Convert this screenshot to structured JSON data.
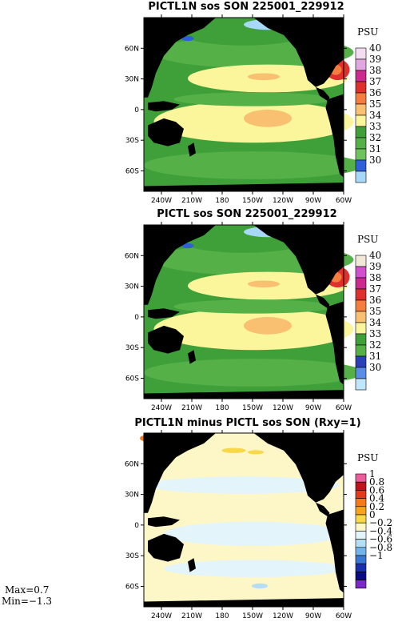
{
  "panels": [
    {
      "title": "PICTL1N sos SON 225001_229912",
      "unit": "PSU",
      "colorbar": [
        {
          "label": "40",
          "color": "#f2ddf2"
        },
        {
          "label": "39",
          "color": "#e0a7e0"
        },
        {
          "label": "38",
          "color": "#cc2a8f"
        },
        {
          "label": "37",
          "color": "#e0302d"
        },
        {
          "label": "36",
          "color": "#f57d3d"
        },
        {
          "label": "35",
          "color": "#f8c070"
        },
        {
          "label": "34",
          "color": "#fbf59b"
        },
        {
          "label": "33",
          "color": "#3fa03a"
        },
        {
          "label": "32",
          "color": "#55b048"
        },
        {
          "label": "31",
          "color": "#6fc35d"
        },
        {
          "label": "30",
          "color": "#3060d8"
        },
        {
          "label": "",
          "color": "#a8d8f8"
        }
      ]
    },
    {
      "title": "PICTL sos SON 225001_229912",
      "unit": "PSU",
      "colorbar": [
        {
          "label": "40",
          "color": "#f2e8d8"
        },
        {
          "label": "39",
          "color": "#d24fcf"
        },
        {
          "label": "38",
          "color": "#cc2a8f"
        },
        {
          "label": "37",
          "color": "#e0302d"
        },
        {
          "label": "36",
          "color": "#f57d3d"
        },
        {
          "label": "35",
          "color": "#f8c070"
        },
        {
          "label": "34",
          "color": "#fbf59b"
        },
        {
          "label": "33",
          "color": "#3fa03a"
        },
        {
          "label": "32",
          "color": "#55b048"
        },
        {
          "label": "31",
          "color": "#2a3fb8"
        },
        {
          "label": "30",
          "color": "#5b8ce8"
        },
        {
          "label": "",
          "color": "#bfe6fb"
        }
      ]
    },
    {
      "title": "PICTL1N minus PICTL sos SON (Rxy=1)",
      "unit": "PSU",
      "colorbar": [
        {
          "label": "1",
          "color": "#ee5d9b"
        },
        {
          "label": "0.8",
          "color": "#c41018"
        },
        {
          "label": "0.6",
          "color": "#e8381a"
        },
        {
          "label": "0.4",
          "color": "#f67a1a"
        },
        {
          "label": "0.2",
          "color": "#f8a41a"
        },
        {
          "label": "0",
          "color": "#f8d84a"
        },
        {
          "label": "−0.2",
          "color": "#fdf7c7"
        },
        {
          "label": "−0.4",
          "color": "#e3f4fb"
        },
        {
          "label": "−0.6",
          "color": "#b5def4"
        },
        {
          "label": "−0.8",
          "color": "#72b5ea"
        },
        {
          "label": "−1",
          "color": "#3a78d8"
        },
        {
          "label": "",
          "color": "#1830b0"
        },
        {
          "label": "",
          "color": "#0a0a88"
        },
        {
          "label": "",
          "color": "#7a28c8"
        }
      ]
    }
  ],
  "lat_ticks": [
    "60N",
    "30N",
    "0",
    "30S",
    "60S"
  ],
  "lon_ticks": [
    "240W",
    "210W",
    "180",
    "150W",
    "120W",
    "90W",
    "60W"
  ],
  "stats": {
    "max": "Max=0.7",
    "min": "Min=−1.3"
  },
  "chart_data": [
    {
      "type": "heatmap",
      "title": "PICTL1N sos SON 225001_229912",
      "variable": "sos",
      "units": "PSU",
      "levels": [
        30,
        31,
        32,
        33,
        34,
        35,
        36,
        37,
        38,
        39,
        40
      ],
      "lat_ticks": [
        "60N",
        "30N",
        "0",
        "30S",
        "60S"
      ],
      "lon_ticks": [
        "240W",
        "210W",
        "180",
        "150W",
        "120W",
        "90W",
        "60W"
      ]
    },
    {
      "type": "heatmap",
      "title": "PICTL sos SON 225001_229912",
      "variable": "sos",
      "units": "PSU",
      "levels": [
        30,
        31,
        32,
        33,
        34,
        35,
        36,
        37,
        38,
        39,
        40
      ],
      "lat_ticks": [
        "60N",
        "30N",
        "0",
        "30S",
        "60S"
      ],
      "lon_ticks": [
        "240W",
        "210W",
        "180",
        "150W",
        "120W",
        "90W",
        "60W"
      ]
    },
    {
      "type": "heatmap",
      "title": "PICTL1N minus PICTL sos SON (Rxy=1)",
      "variable": "sos difference",
      "units": "PSU",
      "levels": [
        -1,
        -0.8,
        -0.6,
        -0.4,
        -0.2,
        0,
        0.2,
        0.4,
        0.6,
        0.8,
        1
      ],
      "max": 0.7,
      "min": -1.3,
      "lat_ticks": [
        "60N",
        "30N",
        "0",
        "30S",
        "60S"
      ],
      "lon_ticks": [
        "240W",
        "210W",
        "180",
        "150W",
        "120W",
        "90W",
        "60W"
      ]
    }
  ]
}
